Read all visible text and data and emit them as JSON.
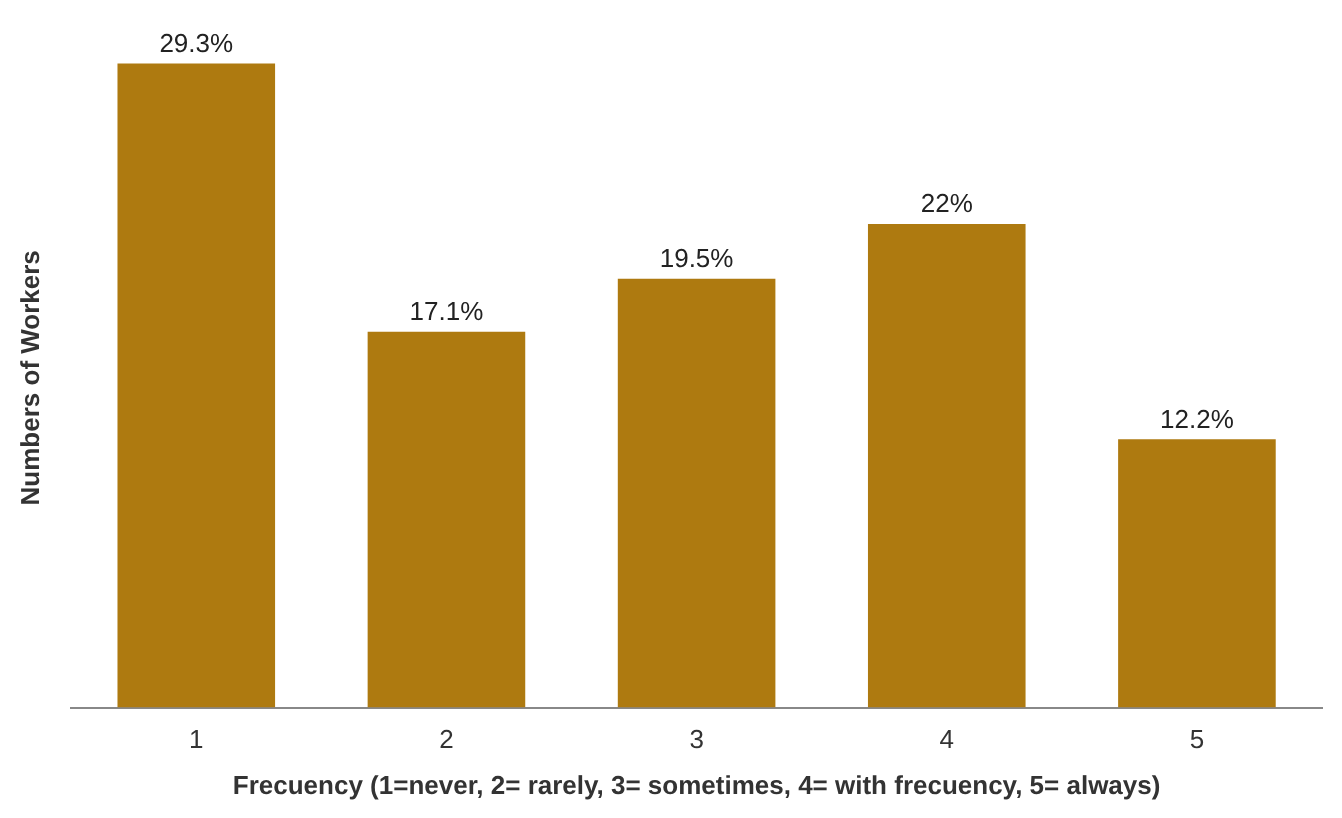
{
  "chart_data": {
    "type": "bar",
    "xlabel": "Frecuency (1=never, 2= rarely, 3= sometimes, 4= with frecuency, 5= always)",
    "ylabel": "Numbers of Workers",
    "categories": [
      "1",
      "2",
      "3",
      "4",
      "5"
    ],
    "values": [
      29.3,
      17.1,
      19.5,
      22,
      12.2
    ],
    "value_labels": [
      "29.3%",
      "17.1%",
      "19.5%",
      "22%",
      "12.2%"
    ],
    "color": "#ae7a10",
    "grid": false,
    "legend": false
  }
}
